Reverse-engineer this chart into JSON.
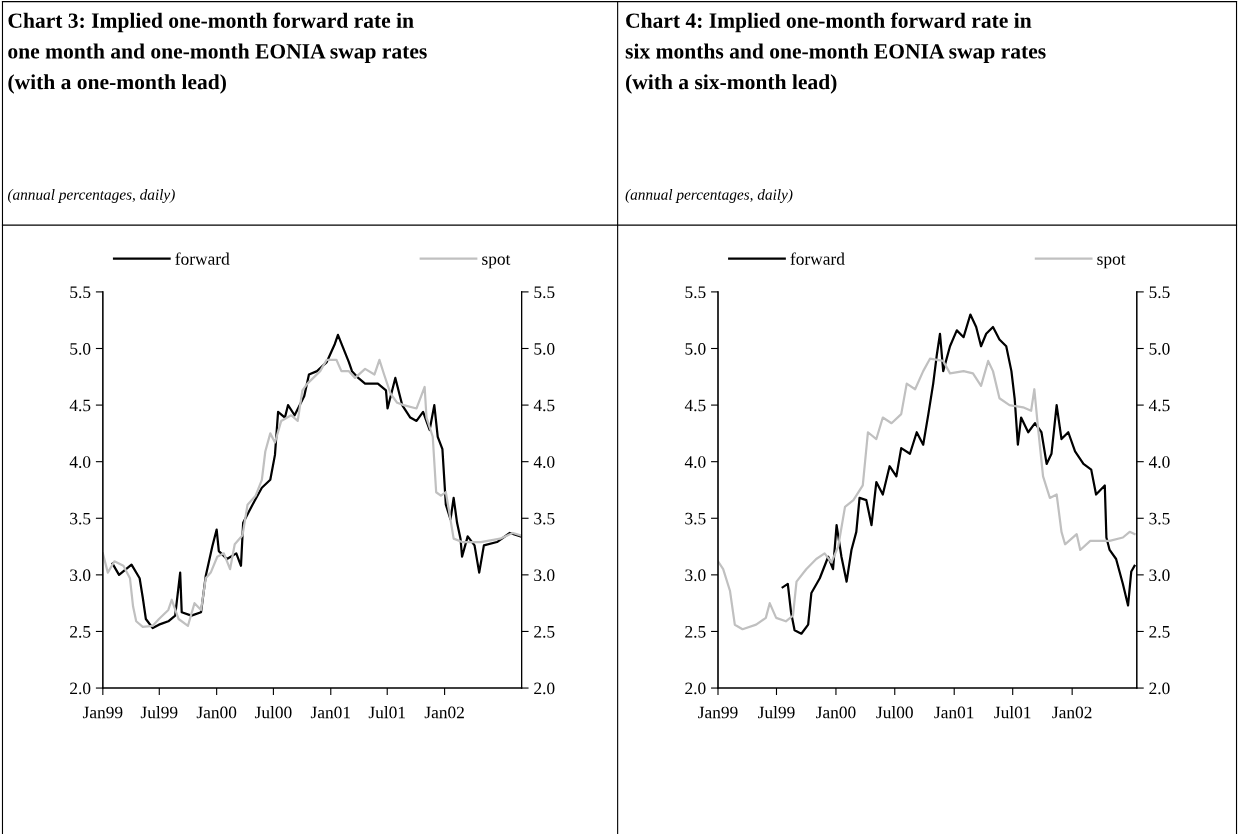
{
  "chart_data": [
    {
      "type": "line",
      "title": "Chart 3: Implied one-month forward rate in\none month and one-month EONIA swap rates\n(with a one-month lead)",
      "subtitle": "(annual percentages, daily)",
      "xlim": [
        "1999-01-01",
        "2002-09-05"
      ],
      "xticks": [
        {
          "value": "1999-01-01",
          "label": "Jan99"
        },
        {
          "value": "1999-07-01",
          "label": "Jul99"
        },
        {
          "value": "2000-01-01",
          "label": "Jan00"
        },
        {
          "value": "2000-07-01",
          "label": "Jul00"
        },
        {
          "value": "2001-01-01",
          "label": "Jan01"
        },
        {
          "value": "2001-07-01",
          "label": "Jul01"
        },
        {
          "value": "2002-01-01",
          "label": "Jan02"
        }
      ],
      "ylim": [
        2.0,
        5.5
      ],
      "yticks": [
        {
          "value": 2.0,
          "label": "2.0"
        },
        {
          "value": 2.5,
          "label": "2.5"
        },
        {
          "value": 3.0,
          "label": "3.0"
        },
        {
          "value": 3.5,
          "label": "3.5"
        },
        {
          "value": 4.0,
          "label": "4.0"
        },
        {
          "value": 4.5,
          "label": "4.5"
        },
        {
          "value": 5.0,
          "label": "5.0"
        },
        {
          "value": 5.5,
          "label": "5.5"
        }
      ],
      "y2lim": [
        2.0,
        5.5
      ],
      "y2ticks": [
        {
          "value": 2.0,
          "label": "2.0"
        },
        {
          "value": 2.5,
          "label": "2.5"
        },
        {
          "value": 3.0,
          "label": "3.0"
        },
        {
          "value": 3.5,
          "label": "3.5"
        },
        {
          "value": 4.0,
          "label": "4.0"
        },
        {
          "value": 4.5,
          "label": "4.5"
        },
        {
          "value": 5.0,
          "label": "5.0"
        },
        {
          "value": 5.5,
          "label": "5.5"
        }
      ],
      "legend": "top",
      "grid": false,
      "marker": "none",
      "line_style": "solid",
      "series": [
        {
          "name": "forward",
          "color": "#000000",
          "x": [
            "1999-02-01",
            "1999-02-22",
            "1999-04-03",
            "1999-04-29",
            "1999-05-09",
            "1999-05-19",
            "1999-06-10",
            "1999-06-30",
            "1999-07-30",
            "1999-08-21",
            "1999-09-06",
            "1999-09-11",
            "1999-10-12",
            "1999-11-12",
            "1999-11-27",
            "1999-12-18",
            "2000-01-01",
            "2000-01-08",
            "2000-02-03",
            "2000-03-04",
            "2000-03-19",
            "2000-03-26",
            "2000-04-25",
            "2000-05-25",
            "2000-06-21",
            "2000-07-06",
            "2000-07-16",
            "2000-08-07",
            "2000-08-17",
            "2000-09-07",
            "2000-10-08",
            "2000-10-23",
            "2000-11-18",
            "2000-12-19",
            "2001-01-14",
            "2001-01-24",
            "2001-02-09",
            "2001-02-28",
            "2001-03-10",
            "2001-03-30",
            "2001-04-21",
            "2001-06-01",
            "2001-06-27",
            "2001-07-02",
            "2001-07-27",
            "2001-08-18",
            "2001-09-13",
            "2001-10-03",
            "2001-10-24",
            "2001-11-14",
            "2001-11-29",
            "2001-12-10",
            "2001-12-25",
            "2002-01-05",
            "2002-01-20",
            "2002-01-30",
            "2002-02-10",
            "2002-02-21",
            "2002-02-26",
            "2002-03-16",
            "2002-04-07",
            "2002-04-22",
            "2002-05-07",
            "2002-06-18",
            "2002-07-29",
            "2002-09-01"
          ],
          "values": [
            3.1,
            3.0,
            3.09,
            2.97,
            2.8,
            2.61,
            2.53,
            2.56,
            2.59,
            2.64,
            3.02,
            2.67,
            2.64,
            2.67,
            2.99,
            3.25,
            3.4,
            3.21,
            3.14,
            3.19,
            3.08,
            3.46,
            3.62,
            3.77,
            3.84,
            4.06,
            4.44,
            4.39,
            4.5,
            4.41,
            4.58,
            4.77,
            4.8,
            4.88,
            5.04,
            5.12,
            5.01,
            4.88,
            4.8,
            4.74,
            4.69,
            4.69,
            4.63,
            4.47,
            4.74,
            4.5,
            4.39,
            4.36,
            4.44,
            4.28,
            4.5,
            4.22,
            4.11,
            3.62,
            3.49,
            3.68,
            3.46,
            3.32,
            3.16,
            3.34,
            3.26,
            3.02,
            3.26,
            3.29,
            3.37,
            3.34
          ]
        },
        {
          "name": "spot",
          "color": "#c0c0c0",
          "x": [
            "1999-01-01",
            "1999-01-17",
            "1999-02-07",
            "1999-03-08",
            "1999-03-29",
            "1999-04-08",
            "1999-04-18",
            "1999-05-09",
            "1999-06-10",
            "1999-06-30",
            "1999-07-30",
            "1999-08-10",
            "1999-09-01",
            "1999-10-01",
            "1999-10-22",
            "1999-11-12",
            "1999-11-27",
            "1999-12-13",
            "2000-01-03",
            "2000-01-24",
            "2000-02-13",
            "2000-02-28",
            "2000-03-24",
            "2000-04-09",
            "2000-05-05",
            "2000-05-25",
            "2000-06-05",
            "2000-06-21",
            "2000-07-06",
            "2000-07-26",
            "2000-08-27",
            "2000-09-17",
            "2000-10-02",
            "2000-10-18",
            "2000-11-28",
            "2000-12-19",
            "2001-01-19",
            "2001-02-04",
            "2001-02-28",
            "2001-03-20",
            "2001-04-21",
            "2001-05-21",
            "2001-06-06",
            "2001-06-21",
            "2001-07-12",
            "2001-08-02",
            "2001-08-23",
            "2001-10-03",
            "2001-10-29",
            "2001-11-04",
            "2001-11-24",
            "2001-12-05",
            "2001-12-20",
            "2002-01-05",
            "2002-01-15",
            "2002-01-30",
            "2002-02-26",
            "2002-04-27",
            "2002-06-28",
            "2002-08-08",
            "2002-09-01"
          ],
          "values": [
            3.19,
            3.02,
            3.12,
            3.08,
            2.97,
            2.72,
            2.59,
            2.54,
            2.55,
            2.61,
            2.69,
            2.78,
            2.61,
            2.55,
            2.75,
            2.69,
            2.97,
            3.02,
            3.16,
            3.19,
            3.05,
            3.27,
            3.35,
            3.62,
            3.7,
            3.84,
            4.09,
            4.25,
            4.17,
            4.36,
            4.41,
            4.36,
            4.63,
            4.69,
            4.8,
            4.9,
            4.9,
            4.8,
            4.8,
            4.74,
            4.82,
            4.77,
            4.9,
            4.77,
            4.6,
            4.52,
            4.5,
            4.47,
            4.66,
            4.39,
            4.22,
            3.73,
            3.7,
            3.73,
            3.57,
            3.32,
            3.29,
            3.29,
            3.32,
            3.37,
            3.35
          ]
        }
      ]
    },
    {
      "type": "line",
      "title": "Chart 4: Implied one-month forward rate in\nsix months and one-month EONIA swap rates\n(with a six-month lead)",
      "subtitle": "(annual percentages, daily)",
      "xlim": [
        "1999-01-01",
        "2002-07-20"
      ],
      "xticks": [
        {
          "value": "1999-01-01",
          "label": "Jan99"
        },
        {
          "value": "1999-07-01",
          "label": "Jul99"
        },
        {
          "value": "2000-01-01",
          "label": "Jan00"
        },
        {
          "value": "2000-07-01",
          "label": "Jul00"
        },
        {
          "value": "2001-01-01",
          "label": "Jan01"
        },
        {
          "value": "2001-07-01",
          "label": "Jul01"
        },
        {
          "value": "2002-01-01",
          "label": "Jan02"
        }
      ],
      "ylim": [
        2.0,
        5.5
      ],
      "yticks": [
        {
          "value": 2.0,
          "label": "2.0"
        },
        {
          "value": 2.5,
          "label": "2.5"
        },
        {
          "value": 3.0,
          "label": "3.0"
        },
        {
          "value": 3.5,
          "label": "3.5"
        },
        {
          "value": 4.0,
          "label": "4.0"
        },
        {
          "value": 4.5,
          "label": "4.5"
        },
        {
          "value": 5.0,
          "label": "5.0"
        },
        {
          "value": 5.5,
          "label": "5.5"
        }
      ],
      "y2lim": [
        2.0,
        5.5
      ],
      "y2ticks": [
        {
          "value": 2.0,
          "label": "2.0"
        },
        {
          "value": 2.5,
          "label": "2.5"
        },
        {
          "value": 3.0,
          "label": "3.0"
        },
        {
          "value": 3.5,
          "label": "3.5"
        },
        {
          "value": 4.0,
          "label": "4.0"
        },
        {
          "value": 4.5,
          "label": "4.5"
        },
        {
          "value": 5.0,
          "label": "5.0"
        },
        {
          "value": 5.5,
          "label": "5.5"
        }
      ],
      "legend": "top",
      "grid": false,
      "marker": "none",
      "line_style": "solid",
      "series": [
        {
          "name": "forward",
          "color": "#000000",
          "x": [
            "1999-07-20",
            "1999-08-05",
            "1999-08-15",
            "1999-08-26",
            "1999-09-16",
            "1999-10-07",
            "1999-10-17",
            "1999-11-12",
            "1999-12-08",
            "1999-12-23",
            "2000-01-03",
            "2000-01-18",
            "2000-02-03",
            "2000-02-18",
            "2000-03-04",
            "2000-03-14",
            "2000-04-04",
            "2000-04-20",
            "2000-05-05",
            "2000-05-25",
            "2000-06-15",
            "2000-07-06",
            "2000-07-21",
            "2000-08-17",
            "2000-09-07",
            "2000-09-27",
            "2000-10-13",
            "2000-10-28",
            "2000-11-08",
            "2000-11-18",
            "2000-11-28",
            "2000-12-19",
            "2001-01-09",
            "2001-01-30",
            "2001-02-20",
            "2001-03-10",
            "2001-03-25",
            "2001-04-10",
            "2001-05-01",
            "2001-05-21",
            "2001-06-11",
            "2001-06-27",
            "2001-07-07",
            "2001-07-17",
            "2001-07-27",
            "2001-08-18",
            "2001-09-08",
            "2001-09-28",
            "2001-10-14",
            "2001-10-29",
            "2001-11-14",
            "2001-11-29",
            "2001-12-20",
            "2002-01-10",
            "2002-02-05",
            "2002-03-01",
            "2002-03-16",
            "2002-04-12",
            "2002-04-17",
            "2002-04-27",
            "2002-05-17",
            "2002-06-07",
            "2002-06-23",
            "2002-07-03",
            "2002-07-13"
          ],
          "values": [
            2.89,
            2.92,
            2.67,
            2.51,
            2.48,
            2.56,
            2.84,
            2.97,
            3.16,
            3.05,
            3.44,
            3.16,
            2.94,
            3.22,
            3.38,
            3.68,
            3.66,
            3.44,
            3.82,
            3.71,
            3.96,
            3.87,
            4.12,
            4.07,
            4.26,
            4.15,
            4.42,
            4.69,
            4.94,
            5.13,
            4.8,
            5.02,
            5.16,
            5.1,
            5.3,
            5.19,
            5.02,
            5.13,
            5.19,
            5.08,
            5.02,
            4.8,
            4.56,
            4.15,
            4.39,
            4.26,
            4.34,
            4.26,
            3.98,
            4.07,
            4.5,
            4.2,
            4.26,
            4.09,
            3.98,
            3.93,
            3.71,
            3.79,
            3.33,
            3.22,
            3.14,
            2.92,
            2.73,
            3.03,
            3.08
          ]
        },
        {
          "name": "spot",
          "color": "#c0c0c0",
          "x": [
            "1999-01-01",
            "1999-01-17",
            "1999-02-07",
            "1999-02-22",
            "1999-03-18",
            "1999-04-29",
            "1999-05-29",
            "1999-06-10",
            "1999-06-30",
            "1999-07-30",
            "1999-08-21",
            "1999-09-01",
            "1999-10-01",
            "1999-11-01",
            "1999-11-27",
            "1999-12-18",
            "2000-01-08",
            "2000-01-29",
            "2000-02-24",
            "2000-03-24",
            "2000-04-09",
            "2000-05-05",
            "2000-05-25",
            "2000-06-21",
            "2000-07-21",
            "2000-08-07",
            "2000-09-02",
            "2000-09-27",
            "2000-10-18",
            "2000-11-28",
            "2000-12-19",
            "2001-01-30",
            "2001-02-28",
            "2001-03-25",
            "2001-04-16",
            "2001-05-01",
            "2001-05-21",
            "2001-06-21",
            "2001-08-02",
            "2001-08-27",
            "2001-09-06",
            "2001-09-17",
            "2001-10-03",
            "2001-10-24",
            "2001-11-14",
            "2001-11-29",
            "2001-12-10",
            "2002-01-15",
            "2002-01-26",
            "2002-02-26",
            "2002-04-27",
            "2002-06-07",
            "2002-06-28",
            "2002-07-13"
          ],
          "values": [
            3.12,
            3.05,
            2.86,
            2.56,
            2.52,
            2.56,
            2.62,
            2.75,
            2.62,
            2.59,
            2.64,
            2.94,
            3.05,
            3.14,
            3.19,
            3.11,
            3.25,
            3.6,
            3.66,
            3.79,
            4.26,
            4.2,
            4.39,
            4.34,
            4.42,
            4.69,
            4.64,
            4.8,
            4.91,
            4.89,
            4.78,
            4.8,
            4.78,
            4.67,
            4.89,
            4.8,
            4.56,
            4.5,
            4.48,
            4.45,
            4.64,
            4.31,
            3.87,
            3.68,
            3.71,
            3.38,
            3.27,
            3.36,
            3.22,
            3.3,
            3.3,
            3.33,
            3.38,
            3.36
          ]
        }
      ]
    }
  ]
}
